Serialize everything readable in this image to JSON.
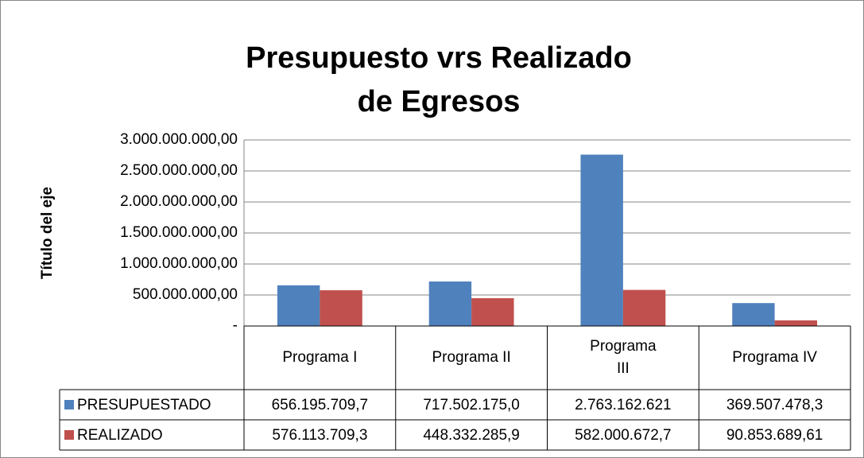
{
  "chart_data": {
    "type": "bar",
    "title": [
      "Presupuesto vrs Realizado",
      "de Egresos"
    ],
    "y_label": "Título del eje",
    "categories": [
      "Programa I",
      "Programa II",
      "Programa III",
      "Programa IV"
    ],
    "series": [
      {
        "name": "PRESUPUESTADO",
        "color": "#4f81bd",
        "values": [
          656195709.7,
          717502175.0,
          2763162621,
          369507478.3
        ],
        "value_labels": [
          "656.195.709,7",
          "717.502.175,0",
          "2.763.162.621",
          "369.507.478,3"
        ]
      },
      {
        "name": "REALIZADO",
        "color": "#c0504d",
        "values": [
          576113709.3,
          448332285.9,
          582000672.7,
          90853689.61
        ],
        "value_labels": [
          "576.113.709,3",
          "448.332.285,9",
          "582.000.672,7",
          "90.853.689,61"
        ]
      }
    ],
    "ylim": [
      0,
      3000000000
    ],
    "yticks": [
      {
        "value": 0,
        "label": "-"
      },
      {
        "value": 500000000,
        "label": "500.000.000,00"
      },
      {
        "value": 1000000000,
        "label": "1.000.000.000,00"
      },
      {
        "value": 1500000000,
        "label": "1.500.000.000,00"
      },
      {
        "value": 2000000000,
        "label": "2.000.000.000,00"
      },
      {
        "value": 2500000000,
        "label": "2.500.000.000,00"
      },
      {
        "value": 3000000000,
        "label": "3.000.000.000,00"
      }
    ],
    "grid": true
  }
}
